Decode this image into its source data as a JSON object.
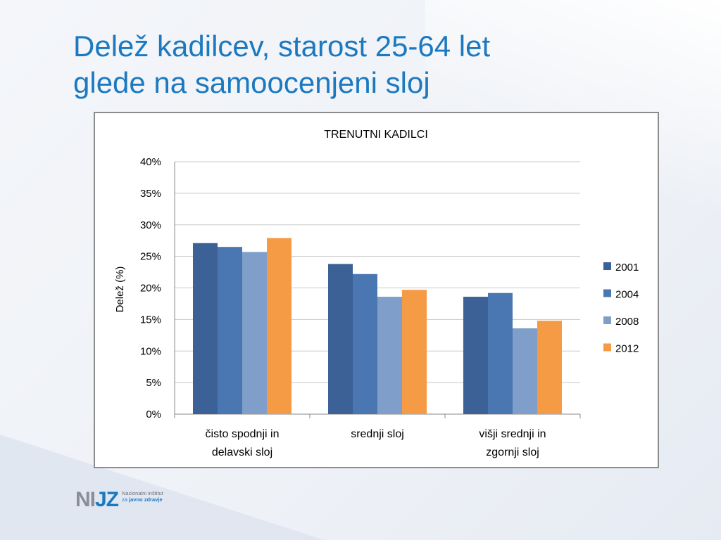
{
  "slide": {
    "title_line1": "Delež kadilcev, starost 25-64 let",
    "title_line2": "glede na samoocenjeni sloj"
  },
  "logo": {
    "mark_gray": "NI",
    "mark_blue": "JZ",
    "line1": "Nacionalni inštitut",
    "line2_prefix": "za",
    "line2_rest": "javno zdravje"
  },
  "chart_data": {
    "type": "bar",
    "title": "TRENUTNI KADILCI",
    "xlabel": "",
    "ylabel": "Delež (%)",
    "ylim": [
      0,
      40
    ],
    "ytick_step": 5,
    "ytick_format": "percent",
    "grid": true,
    "legend_position": "right",
    "categories": [
      [
        "čisto spodnji in",
        "delavski sloj"
      ],
      [
        "srednji sloj"
      ],
      [
        "višji srednji in",
        "zgornji sloj"
      ]
    ],
    "series": [
      {
        "name": "2001",
        "color": "#3b6196",
        "values": [
          27.1,
          23.8,
          18.6
        ]
      },
      {
        "name": "2004",
        "color": "#4a77b2",
        "values": [
          26.5,
          22.2,
          19.2
        ]
      },
      {
        "name": "2008",
        "color": "#7f9ec9",
        "values": [
          25.7,
          18.6,
          13.6
        ]
      },
      {
        "name": "2012",
        "color": "#f59a45",
        "values": [
          27.9,
          19.7,
          14.8
        ]
      }
    ]
  }
}
